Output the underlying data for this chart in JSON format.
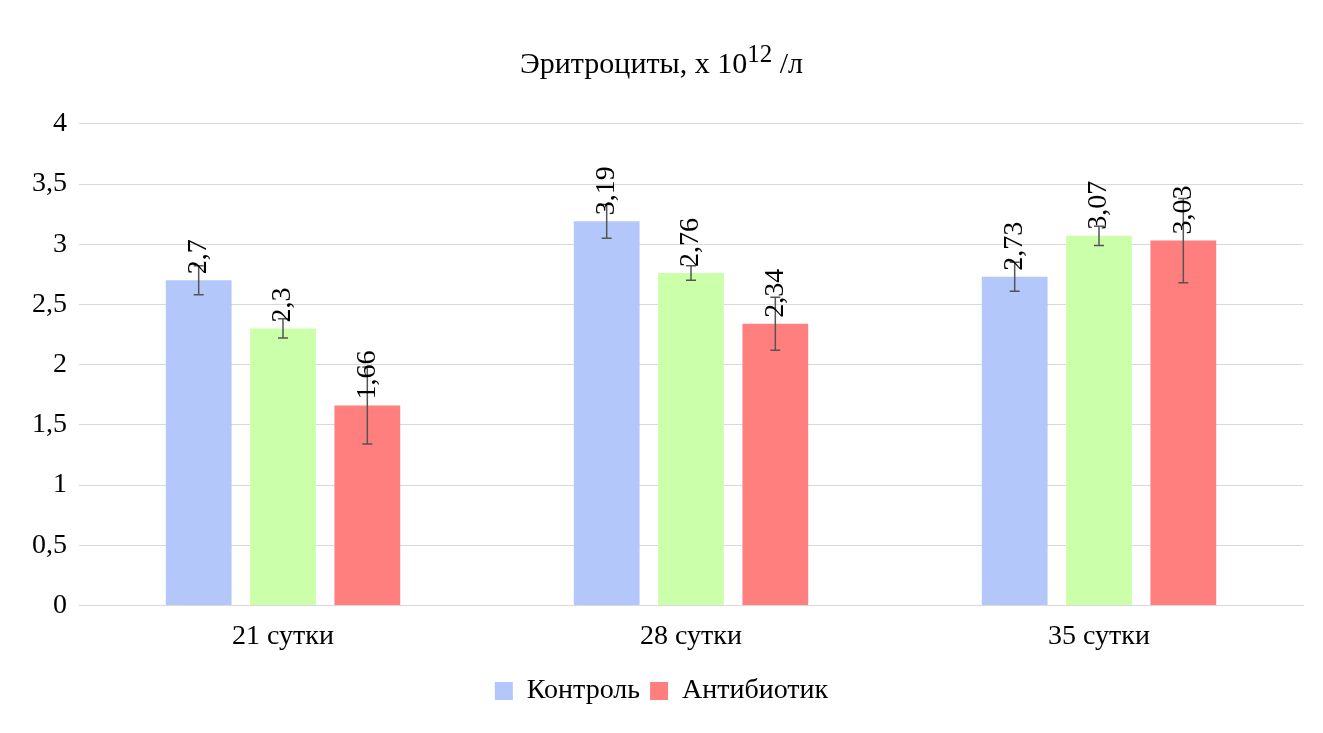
{
  "chart_data": {
    "type": "bar",
    "title": "Эритроциты, х 10$^{12}$ /л",
    "categories": [
      "21 сутки",
      "28 сутки",
      "35 сутки"
    ],
    "series": [
      {
        "name": "Контроль",
        "color": "#b4c7fa",
        "values": [
          2.7,
          3.19,
          2.73
        ],
        "value_labels": [
          "2,7",
          "3,19",
          "2,73"
        ],
        "errors": [
          0.12,
          0.14,
          0.12
        ]
      },
      {
        "color": "#ccffaa",
        "values": [
          2.3,
          2.76,
          3.07
        ],
        "value_labels": [
          "2,3",
          "2,76",
          "3,07"
        ],
        "errors": [
          0.08,
          0.06,
          0.08
        ]
      },
      {
        "name": "Антибиотик",
        "color": "#ff7f7f",
        "values": [
          1.66,
          2.34,
          3.03
        ],
        "value_labels": [
          "1,66",
          "2,34",
          "3,03"
        ],
        "errors": [
          0.32,
          0.22,
          0.35
        ]
      }
    ],
    "ylim": [
      0,
      4
    ],
    "yticks": [
      0,
      {
        "value": 0.5,
        "label": "0,5"
      },
      1,
      {
        "value": 1.5,
        "label": "1,5"
      },
      2,
      {
        "value": 2.5,
        "label": "2,5"
      },
      3,
      {
        "value": 3.5,
        "label": "3,5"
      },
      4
    ],
    "grid": "y",
    "legend": "bottom"
  }
}
